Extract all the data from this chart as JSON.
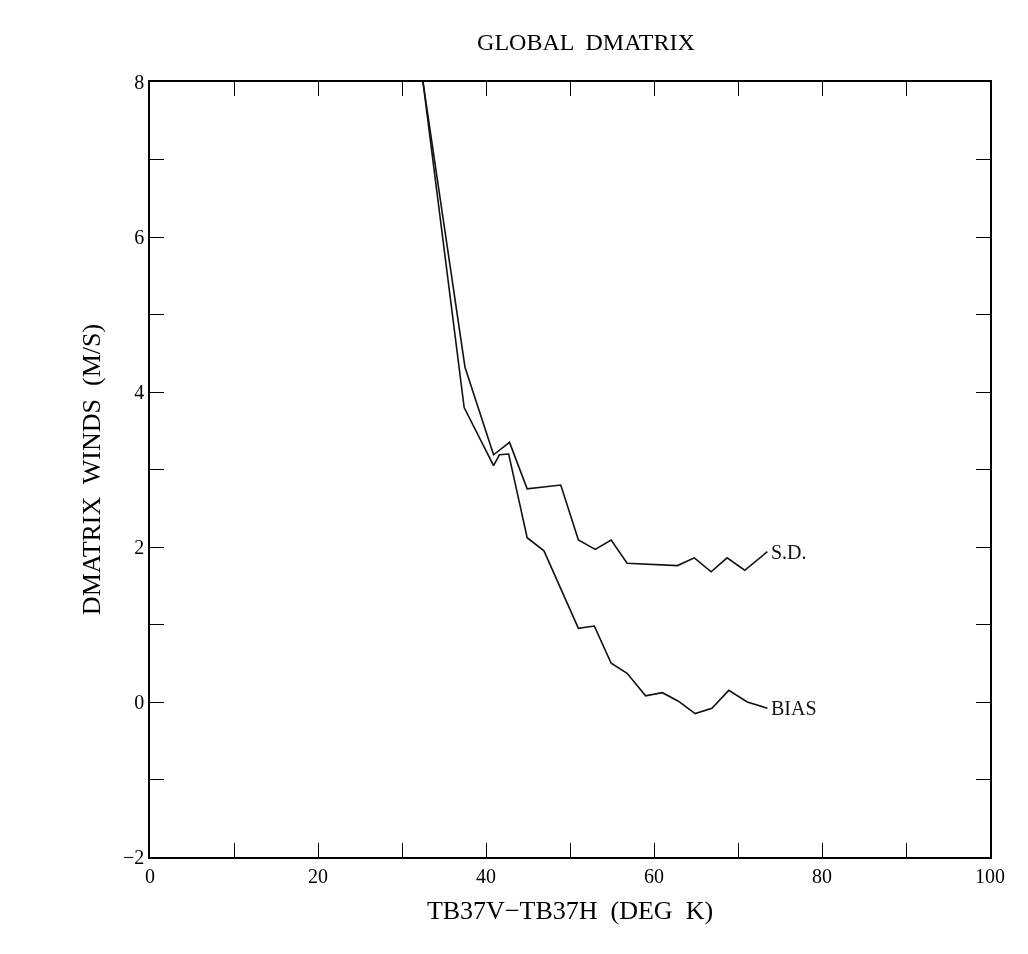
{
  "chart_data": {
    "type": "line",
    "title": "GLOBAL  DMATRIX",
    "xlabel": "TB37V−TB37H  (DEG  K)",
    "ylabel": "DMATRIX  WINDS  (M/S)",
    "xlim": [
      0,
      100
    ],
    "ylim": [
      -2,
      8
    ],
    "xticks": [
      0,
      {
        "value": 10,
        "label": null
      },
      20,
      {
        "value": 30,
        "label": null
      },
      40,
      {
        "value": 50,
        "label": null
      },
      60,
      {
        "value": 70,
        "label": null
      },
      80,
      {
        "value": 90,
        "label": null
      },
      100
    ],
    "yticks": [
      -2,
      {
        "value": -1,
        "label": null
      },
      0,
      {
        "value": 1,
        "label": null
      },
      2,
      {
        "value": 3,
        "label": null
      },
      4,
      {
        "value": 5,
        "label": null
      },
      6,
      {
        "value": 7,
        "label": null
      },
      8
    ],
    "legend": false,
    "marker": "none",
    "line_style": "solid",
    "series": [
      {
        "name": "S.D.",
        "color": "#111111",
        "x": [
          32.5,
          37.5,
          40.9,
          42.8,
          44.9,
          48.9,
          51,
          53,
          54.9,
          56.8,
          62.8,
          64.8,
          66.8,
          68.7,
          70.8,
          73.5
        ],
        "values": [
          8,
          4.32,
          3.19,
          3.35,
          2.75,
          2.8,
          2.09,
          1.97,
          2.09,
          1.79,
          1.76,
          1.86,
          1.68,
          1.86,
          1.7,
          1.94
        ]
      },
      {
        "name": "BIAS",
        "color": "#111111",
        "x": [
          32.5,
          37.4,
          40.9,
          41.6,
          42.7,
          44.9,
          46.9,
          51,
          52.9,
          54.9,
          56.8,
          59,
          61,
          62.9,
          64.9,
          66.9,
          68.9,
          71.1,
          73.5
        ],
        "values": [
          8,
          3.8,
          3.05,
          3.19,
          3.2,
          2.12,
          1.95,
          0.95,
          0.98,
          0.5,
          0.37,
          0.08,
          0.12,
          0.01,
          -0.15,
          -0.08,
          0.15,
          0.0,
          -0.08
        ]
      }
    ]
  }
}
